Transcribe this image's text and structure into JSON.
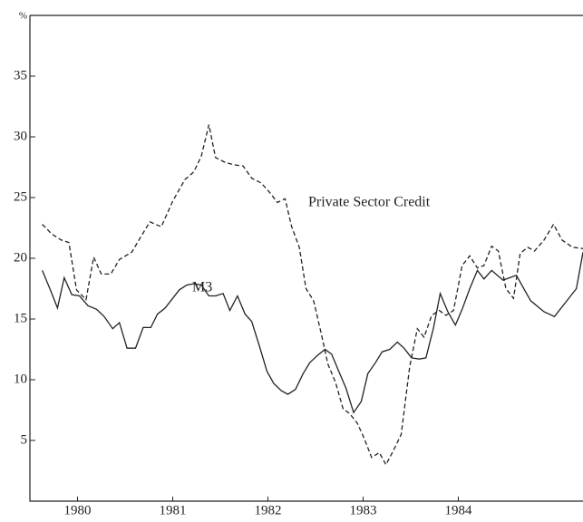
{
  "chart_data": {
    "type": "line",
    "xlim": [
      1980.0,
      1985.81
    ],
    "xticks": [
      {
        "value": 1980.5,
        "label": "1980"
      },
      {
        "value": 1981.5,
        "label": "1981"
      },
      {
        "value": 1982.5,
        "label": "1982"
      },
      {
        "value": 1983.5,
        "label": "1983"
      },
      {
        "value": 1984.5,
        "label": "1984"
      }
    ],
    "ylim": [
      0,
      40
    ],
    "yticks": [
      5,
      10,
      15,
      20,
      25,
      30,
      35,
      {
        "value": 40,
        "label": "%"
      }
    ],
    "annotations": [
      "Private Sector Credit",
      "M3"
    ],
    "series": [
      {
        "name": "Private Sector Credit",
        "color": "#222222",
        "dashed": true,
        "x": [
          1980.13,
          1980.23,
          1980.33,
          1980.41,
          1980.49,
          1980.59,
          1980.67,
          1980.75,
          1980.85,
          1980.94,
          1981.07,
          1981.16,
          1981.26,
          1981.38,
          1981.5,
          1981.63,
          1981.72,
          1981.8,
          1981.88,
          1981.95,
          1982.05,
          1982.14,
          1982.24,
          1982.33,
          1982.43,
          1982.52,
          1982.6,
          1982.68,
          1982.75,
          1982.83,
          1982.9,
          1982.98,
          1983.06,
          1983.13,
          1983.21,
          1983.29,
          1983.36,
          1983.44,
          1983.51,
          1983.59,
          1983.67,
          1983.74,
          1983.82,
          1983.9,
          1983.99,
          1984.07,
          1984.14,
          1984.22,
          1984.3,
          1984.37,
          1984.45,
          1984.54,
          1984.62,
          1984.7,
          1984.77,
          1984.85,
          1984.92,
          1985.0,
          1985.08,
          1985.15,
          1985.23,
          1985.3,
          1985.4,
          1985.5,
          1985.59,
          1985.7,
          1985.81
        ],
        "values": [
          22.8,
          22.0,
          21.5,
          21.3,
          17.4,
          16.6,
          20.1,
          18.7,
          18.7,
          19.9,
          20.5,
          21.7,
          23.0,
          22.6,
          24.7,
          26.5,
          27.1,
          28.4,
          31.0,
          28.3,
          27.9,
          27.7,
          27.6,
          26.6,
          26.2,
          25.4,
          24.6,
          24.9,
          22.6,
          20.9,
          17.5,
          16.5,
          13.8,
          11.3,
          9.8,
          7.6,
          7.2,
          6.4,
          5.2,
          3.6,
          4.0,
          3.0,
          4.2,
          5.5,
          11.1,
          14.2,
          13.5,
          15.3,
          15.7,
          15.3,
          15.7,
          19.4,
          20.2,
          19.2,
          19.4,
          21.0,
          20.6,
          17.5,
          16.7,
          20.4,
          20.9,
          20.6,
          21.5,
          22.8,
          21.5,
          20.9,
          20.8
        ]
      },
      {
        "name": "M3",
        "color": "#222222",
        "dashed": false,
        "x": [
          1980.13,
          1980.21,
          1980.29,
          1980.36,
          1980.44,
          1980.52,
          1980.61,
          1980.7,
          1980.78,
          1980.87,
          1980.94,
          1981.02,
          1981.11,
          1981.19,
          1981.27,
          1981.34,
          1981.42,
          1981.5,
          1981.57,
          1981.65,
          1981.72,
          1981.8,
          1981.88,
          1981.95,
          1982.03,
          1982.1,
          1982.18,
          1982.26,
          1982.33,
          1982.41,
          1982.49,
          1982.56,
          1982.64,
          1982.71,
          1982.79,
          1982.87,
          1982.94,
          1983.02,
          1983.1,
          1983.17,
          1983.25,
          1983.32,
          1983.4,
          1983.48,
          1983.55,
          1983.63,
          1983.7,
          1983.78,
          1983.86,
          1983.93,
          1984.01,
          1984.09,
          1984.16,
          1984.24,
          1984.31,
          1984.39,
          1984.47,
          1984.54,
          1984.62,
          1984.7,
          1984.77,
          1984.85,
          1984.97,
          1985.11,
          1985.26,
          1985.4,
          1985.51,
          1985.64,
          1985.74,
          1985.81
        ],
        "values": [
          19.0,
          17.5,
          15.9,
          18.4,
          17.0,
          16.9,
          16.1,
          15.8,
          15.2,
          14.2,
          14.7,
          12.6,
          12.6,
          14.3,
          14.3,
          15.4,
          15.9,
          16.7,
          17.4,
          17.8,
          17.9,
          17.8,
          16.9,
          16.9,
          17.1,
          15.7,
          16.9,
          15.4,
          14.8,
          12.8,
          10.7,
          9.7,
          9.1,
          8.8,
          9.2,
          10.5,
          11.4,
          12.0,
          12.5,
          12.1,
          10.6,
          9.3,
          7.3,
          8.2,
          10.5,
          11.4,
          12.3,
          12.5,
          13.1,
          12.6,
          11.8,
          11.7,
          11.8,
          14.3,
          17.1,
          15.6,
          14.5,
          15.8,
          17.5,
          19.0,
          18.3,
          19.0,
          18.2,
          18.6,
          16.5,
          15.6,
          15.2,
          16.5,
          17.5,
          20.5
        ]
      }
    ]
  }
}
